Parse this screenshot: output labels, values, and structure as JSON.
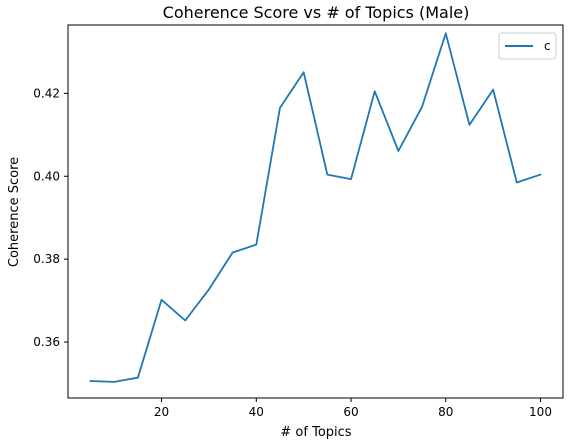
{
  "chart_data": {
    "type": "line",
    "title": "Coherence Score vs # of Topics (Male)",
    "xlabel": "# of Topics",
    "ylabel": "Coherence Score",
    "xlim": [
      0.25,
      104.75
    ],
    "ylim": [
      0.3465,
      0.4365
    ],
    "xticks": [
      20,
      40,
      60,
      80,
      100
    ],
    "yticks": [
      0.36,
      0.38,
      0.4,
      0.42
    ],
    "ytick_labels": [
      "0.36",
      "0.38",
      "0.40",
      "0.42"
    ],
    "grid": false,
    "legend_position": "top-right",
    "series": [
      {
        "name": "c",
        "color": "#1f77b4",
        "x": [
          5,
          10,
          15,
          20,
          25,
          30,
          35,
          40,
          45,
          50,
          55,
          60,
          65,
          70,
          75,
          80,
          85,
          90,
          95,
          100
        ],
        "y": [
          0.3506,
          0.3504,
          0.3514,
          0.3702,
          0.3652,
          0.3727,
          0.3816,
          0.3835,
          0.4165,
          0.4251,
          0.4004,
          0.3993,
          0.4205,
          0.4061,
          0.4168,
          0.4345,
          0.4124,
          0.4209,
          0.3985,
          0.4004
        ]
      }
    ]
  }
}
